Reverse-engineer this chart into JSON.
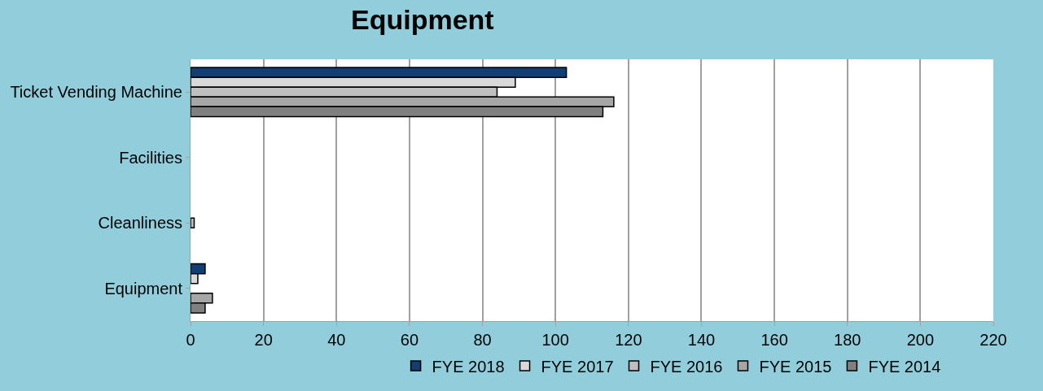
{
  "chart_data": {
    "type": "bar",
    "orientation": "horizontal",
    "title": "Equipment",
    "categories": [
      "Ticket Vending Machine",
      "Facilities",
      "Cleanliness",
      "Equipment"
    ],
    "series": [
      {
        "name": "FYE 2018",
        "color": "#123f73",
        "values": [
          103,
          null,
          null,
          4
        ]
      },
      {
        "name": "FYE 2017",
        "color": "#d9d9d9",
        "values": [
          89,
          null,
          null,
          2
        ]
      },
      {
        "name": "FYE 2016",
        "color": "#bfbfbf",
        "values": [
          84,
          null,
          1,
          null
        ]
      },
      {
        "name": "FYE 2015",
        "color": "#a6a6a6",
        "values": [
          116,
          null,
          null,
          6
        ]
      },
      {
        "name": "FYE 2014",
        "color": "#808080",
        "values": [
          113,
          null,
          null,
          4
        ]
      }
    ],
    "xlim": [
      0,
      220
    ],
    "xticks": [
      0,
      20,
      40,
      60,
      80,
      100,
      120,
      140,
      160,
      180,
      200,
      220
    ],
    "grid": "x",
    "legend": "bottom"
  }
}
